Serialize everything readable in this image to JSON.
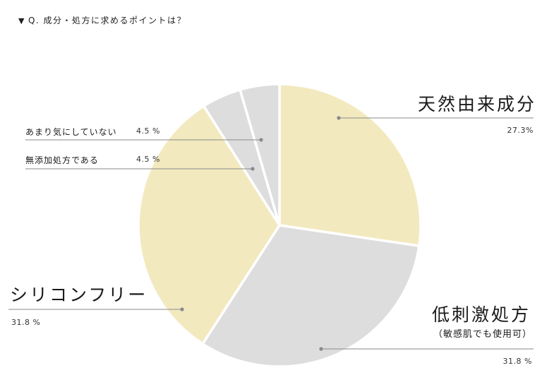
{
  "question": {
    "marker": "▼",
    "text": "Q. 成分・処方に求めるポイントは？"
  },
  "chart_data": {
    "type": "pie",
    "start_angle_deg": 0,
    "direction": "clockwise",
    "slices": [
      {
        "label": "天然由来成分",
        "value": 27.3,
        "value_label": "27.3%",
        "color": "#f3e9bf"
      },
      {
        "label": "低刺激処方",
        "sublabel": "（敏感肌でも使用可）",
        "value": 31.8,
        "value_label": "31.8 %",
        "color": "#dddddd"
      },
      {
        "label": "シリコンフリー",
        "value": 31.8,
        "value_label": "31.8 %",
        "color": "#f3e9bf"
      },
      {
        "label": "無添加処方である",
        "value": 4.5,
        "value_label": "4.5 %",
        "color": "#dddddd"
      },
      {
        "label": "あまり気にしていない",
        "value": 4.5,
        "value_label": "4.5 %",
        "color": "#dddddd"
      }
    ],
    "leader_color": "#8a8a8a",
    "legend": "none"
  }
}
